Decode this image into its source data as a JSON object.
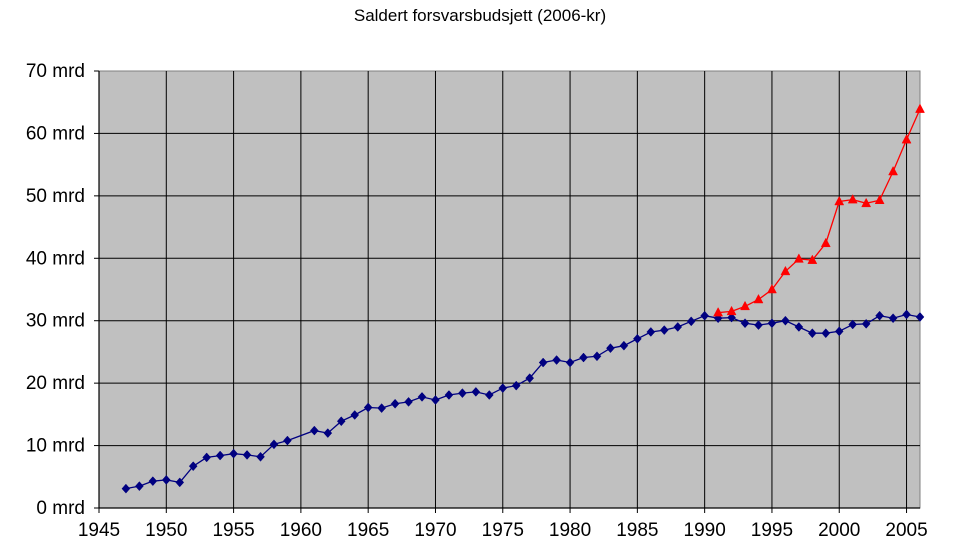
{
  "chart_data": {
    "type": "line",
    "title": "Saldert forsvarsbudsjett (2006-kr)",
    "xlabel": "",
    "ylabel": "",
    "xlim": [
      1945,
      2006
    ],
    "ylim": [
      0,
      70
    ],
    "x_ticks": [
      1945,
      1950,
      1955,
      1960,
      1965,
      1970,
      1975,
      1980,
      1985,
      1990,
      1995,
      2000,
      2005
    ],
    "y_ticks": [
      {
        "value": 0,
        "label": "0 mrd"
      },
      {
        "value": 10,
        "label": "10 mrd"
      },
      {
        "value": 20,
        "label": "20 mrd"
      },
      {
        "value": 30,
        "label": "30 mrd"
      },
      {
        "value": 40,
        "label": "40 mrd"
      },
      {
        "value": 50,
        "label": "50 mrd"
      },
      {
        "value": 60,
        "label": "60 mrd"
      },
      {
        "value": 70,
        "label": "70 mrd"
      }
    ],
    "grid": true,
    "plot_background": "#c0c0c0",
    "series": [
      {
        "color": "#000080",
        "marker": "diamond",
        "x": [
          1947,
          1948,
          1949,
          1950,
          1951,
          1952,
          1953,
          1954,
          1955,
          1956,
          1957,
          1958,
          1959,
          1961,
          1962,
          1963,
          1964,
          1965,
          1966,
          1967,
          1968,
          1969,
          1970,
          1971,
          1972,
          1973,
          1974,
          1975,
          1976,
          1977,
          1978,
          1979,
          1980,
          1981,
          1982,
          1983,
          1984,
          1985,
          1986,
          1987,
          1988,
          1989,
          1990,
          1991,
          1992,
          1993,
          1994,
          1995,
          1996,
          1997,
          1998,
          1999,
          2000,
          2001,
          2002,
          2003,
          2004,
          2005,
          2006
        ],
        "y": [
          3.1,
          3.5,
          4.3,
          4.5,
          4.1,
          6.7,
          8.1,
          8.4,
          8.7,
          8.5,
          8.2,
          10.2,
          10.8,
          12.4,
          12.0,
          13.9,
          14.9,
          16.1,
          16.0,
          16.7,
          17.0,
          17.8,
          17.3,
          18.1,
          18.4,
          18.6,
          18.1,
          19.2,
          19.6,
          20.8,
          23.3,
          23.7,
          23.3,
          24.1,
          24.3,
          25.6,
          26.0,
          27.1,
          28.2,
          28.5,
          29.0,
          29.9,
          30.8,
          30.4,
          30.5,
          29.6,
          29.3,
          29.6,
          30.0,
          29.0,
          28.0,
          28.0,
          28.3,
          29.4,
          29.5,
          30.8,
          30.4,
          31.0,
          30.6
        ]
      },
      {
        "color": "#ff0000",
        "marker": "triangle",
        "x": [
          1991,
          1992,
          1993,
          1994,
          1995,
          1996,
          1997,
          1998,
          1999,
          2000,
          2001,
          2002,
          2003,
          2004,
          2005,
          2006
        ],
        "y": [
          31.3,
          31.5,
          32.3,
          33.4,
          35.0,
          37.9,
          39.9,
          39.7,
          42.4,
          49.1,
          49.4,
          48.8,
          49.3,
          53.9,
          59.0,
          63.9
        ]
      }
    ]
  }
}
